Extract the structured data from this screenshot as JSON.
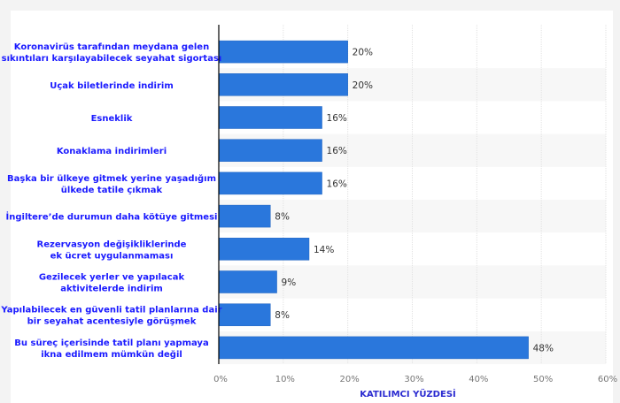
{
  "chart_data": {
    "type": "bar",
    "orientation": "horizontal",
    "categories": [
      [
        "Koronavirüs tarafından meydana gelen",
        "sıkıntıları karşılayabilecek seyahat sigortası"
      ],
      [
        "Uçak biletlerinde indirim"
      ],
      [
        "Esneklik"
      ],
      [
        "Konaklama indirimleri"
      ],
      [
        "Başka bir ülkeye gitmek yerine yaşadığım",
        "ülkede tatile çıkmak"
      ],
      [
        "İngiltere’de durumun daha kötüye gitmesi"
      ],
      [
        "Rezervasyon değişikliklerinde",
        "ek ücret uygulanmaması"
      ],
      [
        "Gezilecek yerler ve yapılacak",
        "aktivitelerde indirim"
      ],
      [
        "Yapılabilecek en güvenli tatil planlarına dair",
        "bir seyahat acentesiyle görüşmek"
      ],
      [
        "Bu süreç içerisinde tatil planı yapmaya",
        "ikna edilmem mümkün değil"
      ]
    ],
    "values": [
      20,
      20,
      16,
      16,
      16,
      8,
      14,
      9,
      8,
      48
    ],
    "data_labels": [
      "20%",
      "20%",
      "16%",
      "16%",
      "16%",
      "8%",
      "14%",
      "9%",
      "8%",
      "48%"
    ],
    "xlabel": "KATILIMCI YÜZDESİ",
    "ylabel": "",
    "xlim": [
      0,
      60
    ],
    "xticks": [
      "0%",
      "10%",
      "20%",
      "30%",
      "40%",
      "50%",
      "60%"
    ],
    "grid": true,
    "colors": {
      "bar": "#2a77dc",
      "label": "#1a1aff",
      "tick": "#777777",
      "stripe": "#f7f7f7"
    }
  }
}
